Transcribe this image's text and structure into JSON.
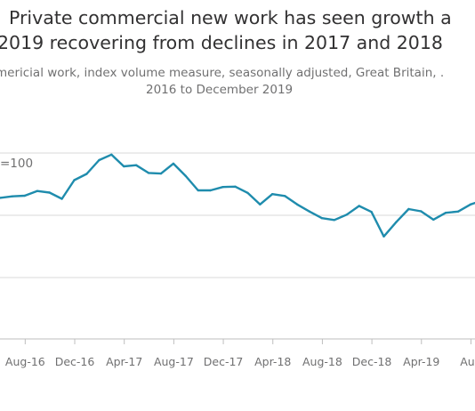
{
  "chart_data": {
    "type": "line",
    "title": [
      "Private commercial new work has seen growth a",
      "2019 recovering from declines in 2017 and 2018"
    ],
    "subtitle": [
      "mericial work, index volume measure, seasonally adjusted, Great Britain, .",
      "2016 to December 2019"
    ],
    "y_unit_label": "=100",
    "x_tick_labels": [
      "Aug-16",
      "Dec-16",
      "Apr-17",
      "Aug-17",
      "Dec-17",
      "Apr-18",
      "Aug-18",
      "Dec-18",
      "Apr-19",
      "Aug"
    ],
    "x_ticks": [
      2,
      6,
      10,
      14,
      18,
      22,
      26,
      30,
      34,
      38
    ],
    "ylim": [
      80,
      120
    ],
    "grid_values": [
      120,
      100,
      80
    ],
    "grid": true,
    "colors": {
      "line": "#1f8cad",
      "grid": "#d9d9d9",
      "axis": "#bebebe",
      "text": "#707071",
      "title": "#323132"
    },
    "series": [
      {
        "x": [
          0,
          1,
          2,
          3,
          4,
          5,
          6,
          7,
          8,
          9,
          10,
          11,
          12,
          13,
          14,
          15,
          16,
          17,
          18,
          19,
          20,
          21,
          22,
          23,
          24,
          25,
          26,
          27,
          28,
          29,
          30,
          31,
          32,
          33,
          34,
          35,
          36,
          37,
          38,
          39
        ],
        "values": [
          105.6,
          106.1,
          106.3,
          107.8,
          107.3,
          105.3,
          111.3,
          113.3,
          117.7,
          119.5,
          115.7,
          116.1,
          113.6,
          113.4,
          116.6,
          112.6,
          108.0,
          108.0,
          109.1,
          109.2,
          107.2,
          103.5,
          106.8,
          106.2,
          103.5,
          101.2,
          99.1,
          98.5,
          100.2,
          103.0,
          101.1,
          93.2,
          97.8,
          102.0,
          101.3,
          98.6,
          100.8,
          101.2,
          103.5,
          104.8
        ]
      }
    ]
  }
}
